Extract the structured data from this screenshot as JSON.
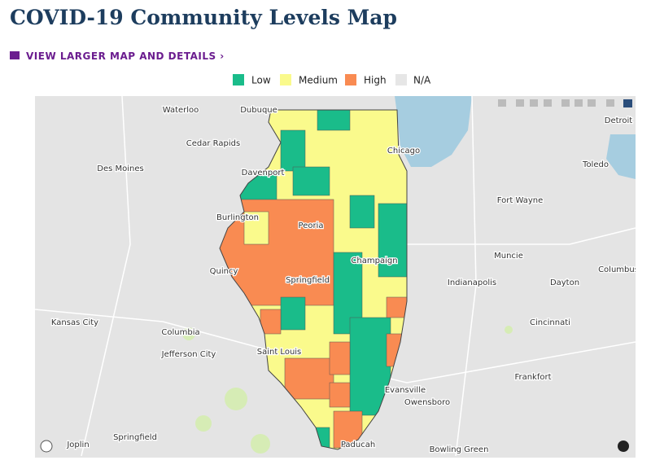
{
  "header": {
    "title": "COVID-19 Community Levels Map",
    "link": "VIEW LARGER MAP AND DETAILS ›"
  },
  "legend": [
    "Low",
    "Medium",
    "High",
    "N/A"
  ],
  "map": {
    "labels": [
      "Waterloo",
      "Dubuque",
      "Cedar Rapids",
      "Des Moines",
      "Davenport",
      "Chicago",
      "Detroit",
      "Toledo",
      "Fort Wayne",
      "Burlington",
      "Peoria",
      "Muncie",
      "Quincy",
      "Champaign",
      "Indianapolis",
      "Dayton",
      "Columbus",
      "Springfield",
      "Kansas City",
      "Columbia",
      "Cincinnati",
      "Jefferson City",
      "Saint Louis",
      "Frankfort",
      "Evansville",
      "Owensboro",
      "Joplin",
      "Springfield",
      "Paducah",
      "Bowling Green"
    ]
  }
}
